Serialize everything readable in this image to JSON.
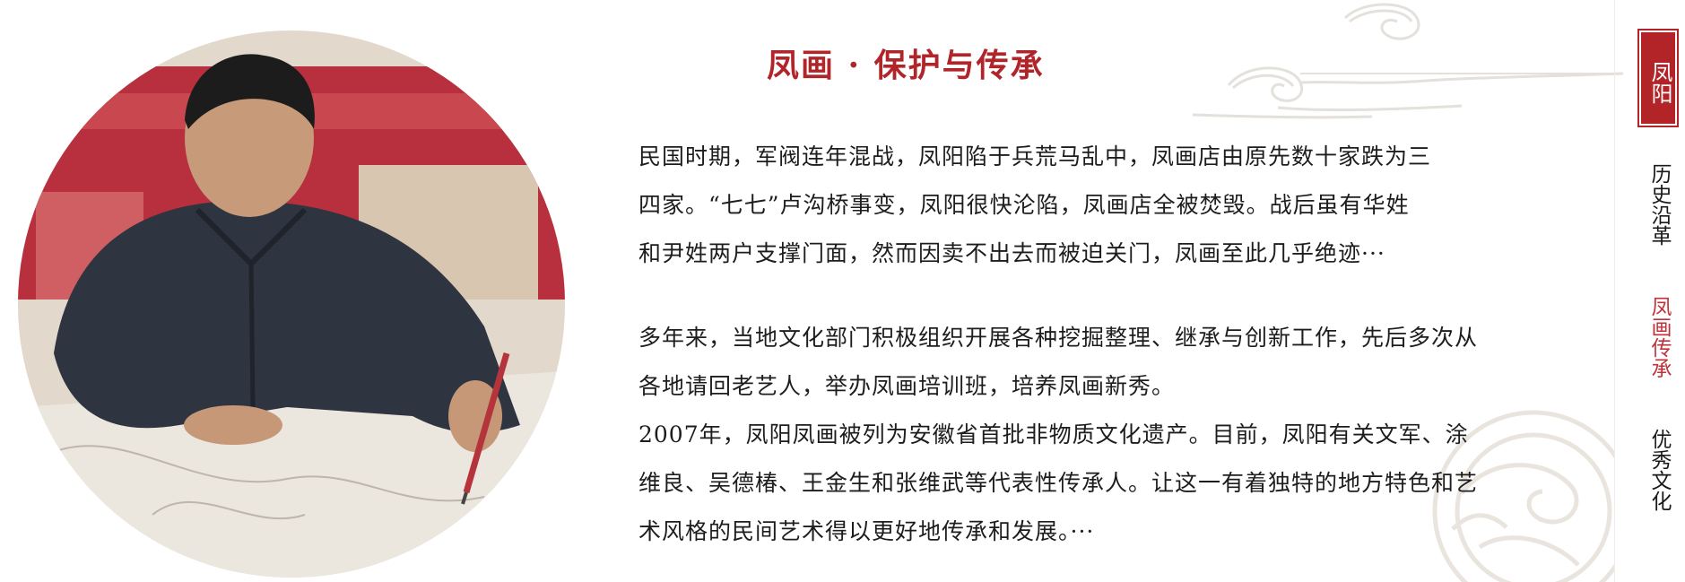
{
  "section": {
    "title": "凤画 · 保护与传承"
  },
  "paragraphs": {
    "p1": [
      "民国时期，军阀连年混战，凤阳陷于兵荒马乱中，凤画店由原先数十家跌为三",
      "四家。“七七”卢沟桥事变，凤阳很快沦陷，凤画店全被焚毁。战后虽有华姓",
      "和尹姓两户支撑门面，然而因卖不出去而被迫关门，凤画至此几乎绝迹···"
    ],
    "p2": [
      "多年来，当地文化部门积极组织开展各种挖掘整理、继承与创新工作，先后多次从",
      "各地请回老艺人，举办凤画培训班，培养凤画新秀。",
      " 2007年，凤阳凤画被列为安徽省首批非物质文化遗产。目前，凤阳有关文军、涂",
      "维良、吴德椿、王金生和张维武等代表性传承人。让这一有着独特的地方特色和艺",
      "术风格的民间艺术得以更好地传承和发展。···"
    ]
  },
  "nav": {
    "badge": "凤阳",
    "items": [
      {
        "label": "历史沿革",
        "active": false
      },
      {
        "label": "凤画传承",
        "active": true
      },
      {
        "label": "优秀文化",
        "active": false
      }
    ]
  },
  "colors": {
    "accent": "#b0252a",
    "active_nav": "#c0323a",
    "text": "#1d1d1d"
  }
}
